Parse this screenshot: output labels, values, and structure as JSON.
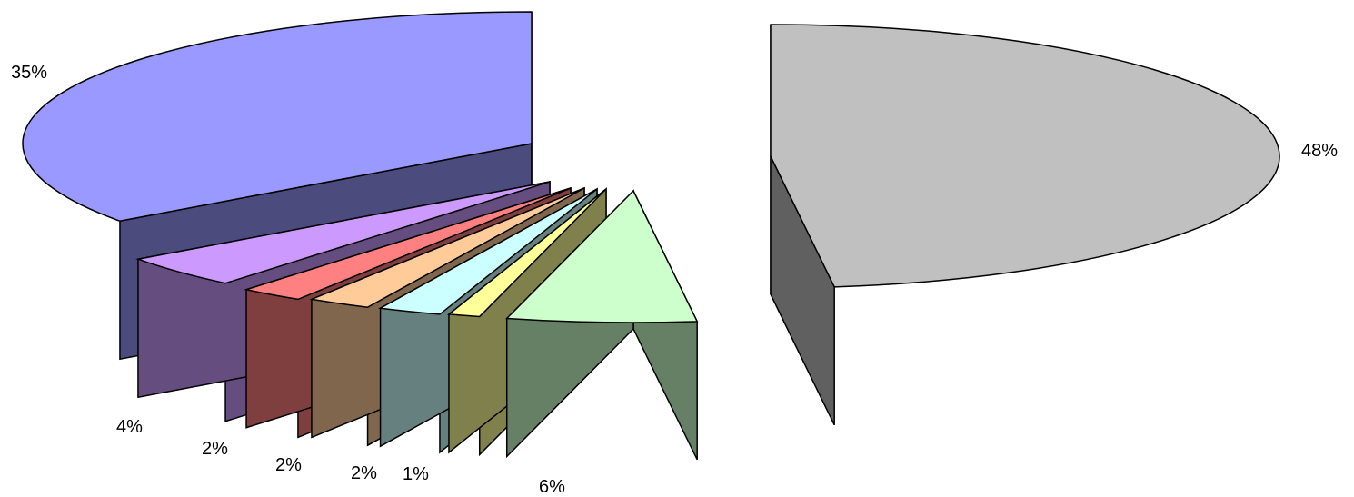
{
  "chart_data": {
    "type": "pie",
    "style": "3d-exploded",
    "title": "",
    "legend": "none",
    "slices": [
      {
        "value": 35,
        "label": "35%",
        "top_color": "#9999FF",
        "side_color": "#4B4B7D",
        "icon": "slice-periwinkle"
      },
      {
        "value": 4,
        "label": "4%",
        "top_color": "#CC99FF",
        "side_color": "#664D80",
        "icon": "slice-lavender"
      },
      {
        "value": 2,
        "label": "2%",
        "top_color": "#FF8080",
        "side_color": "#803F3F",
        "icon": "slice-salmon"
      },
      {
        "value": 2,
        "label": "2%",
        "top_color": "#FFCC99",
        "side_color": "#80664D",
        "icon": "slice-peach"
      },
      {
        "value": 2,
        "label": "2%",
        "top_color": "#CCFFFF",
        "side_color": "#668080",
        "icon": "slice-cyan"
      },
      {
        "value": 1,
        "label": "1%",
        "top_color": "#FFFF99",
        "side_color": "#80804D",
        "icon": "slice-yellow"
      },
      {
        "value": 6,
        "label": "6%",
        "top_color": "#CCFFCC",
        "side_color": "#668066",
        "icon": "slice-mint"
      },
      {
        "value": 48,
        "label": "48%",
        "top_color": "#C0C0C0",
        "side_color": "#606060",
        "icon": "slice-gray"
      }
    ]
  }
}
